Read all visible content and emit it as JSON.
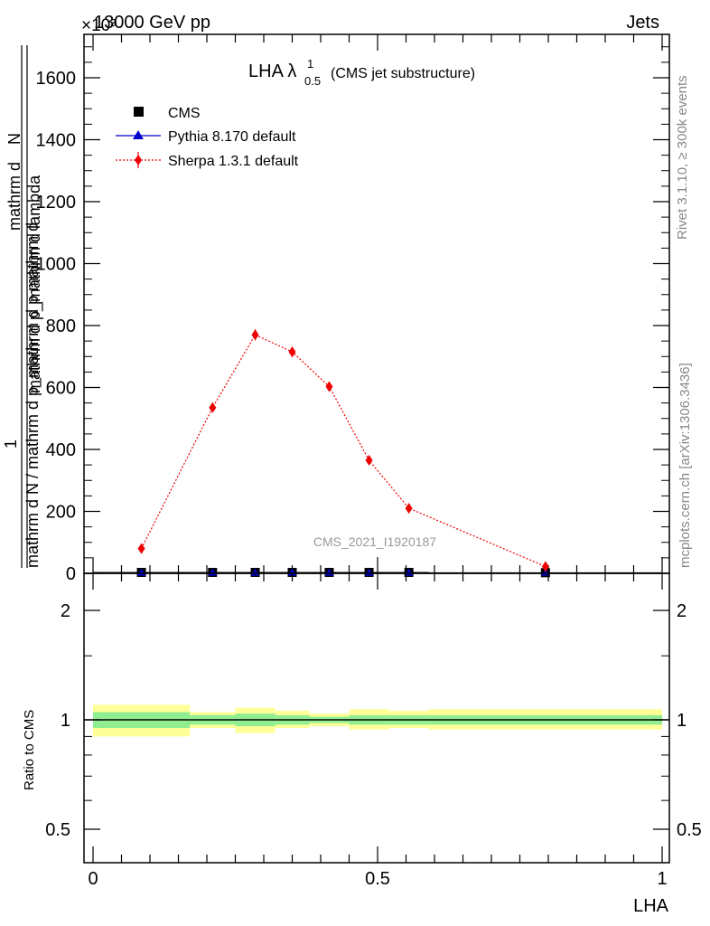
{
  "header": {
    "left_text": "13000 GeV pp",
    "right_text": "Jets",
    "exponent_label": "×10³"
  },
  "side_labels": {
    "rivet": "Rivet 3.1.10, ≥ 300k events",
    "mcplots": "mcplots.cern.ch [arXiv:1306.3436]"
  },
  "main_plot": {
    "title": "LHA λ",
    "title_sup": "1",
    "title_sub": "0.5",
    "title_suffix": "(CMS jet substructure)",
    "watermark": "CMS_2021_I1920187",
    "ylabel_top_a": "mathrm d",
    "ylabel_top_b": "N",
    "ylabel_top_c": "mathrm d p_mathrm d lambda",
    "ylabel_one": "1",
    "ylabel_bottom": "mathrm d N / mathrm d p_mathrm d p mathrm d",
    "yticks": [
      "0",
      "200",
      "400",
      "600",
      "800",
      "1000",
      "1200",
      "1400",
      "1600"
    ]
  },
  "ratio_plot": {
    "ylabel": "Ratio to CMS",
    "yticks": [
      "0.5",
      "1",
      "2"
    ]
  },
  "xaxis": {
    "label": "LHA",
    "ticks": [
      "0",
      "0.5",
      "1"
    ]
  },
  "legend": [
    {
      "name": "CMS",
      "marker": "square",
      "color": "#000000"
    },
    {
      "name": "Pythia 8.170 default",
      "marker": "triangle",
      "color": "#0000cc"
    },
    {
      "name": "Sherpa 1.3.1 default",
      "marker": "diamond",
      "color": "#ee0000"
    }
  ],
  "colors": {
    "sherpa": "#ee0000",
    "pythia": "#0000cc",
    "cms": "#000000",
    "band_inner": "#90ee90",
    "band_outer": "#ffff99"
  },
  "chart_data": {
    "type": "scatter",
    "xlim": [
      0,
      1
    ],
    "ylim": [
      0,
      1750
    ],
    "y_scale_factor": 1000,
    "ratio_ylim": [
      0.4,
      2.5
    ],
    "ratio_scale": "log",
    "grid": false,
    "legend_position": "top-left",
    "series": [
      {
        "name": "CMS",
        "x": [
          0.085,
          0.21,
          0.285,
          0.35,
          0.415,
          0.485,
          0.555,
          0.795
        ],
        "y": [
          3,
          3,
          3,
          3,
          3,
          3,
          3,
          2
        ],
        "xerr": [
          0.085,
          0.04,
          0.035,
          0.03,
          0.035,
          0.035,
          0.035,
          0.205
        ]
      },
      {
        "name": "Pythia 8.170 default",
        "x": [
          0.085,
          0.21,
          0.285,
          0.35,
          0.415,
          0.485,
          0.555,
          0.795
        ],
        "y": [
          1,
          1,
          1,
          1,
          1,
          1,
          1,
          1
        ]
      },
      {
        "name": "Sherpa 1.3.1 default",
        "x": [
          0.085,
          0.21,
          0.285,
          0.35,
          0.415,
          0.485,
          0.555,
          0.795
        ],
        "y": [
          80,
          535,
          770,
          715,
          603,
          365,
          210,
          22
        ],
        "yerr": [
          8,
          15,
          18,
          17,
          15,
          12,
          6,
          6
        ]
      }
    ],
    "ratio_bands": [
      {
        "x0": 0.0,
        "x1": 0.17,
        "inner": [
          0.95,
          1.05
        ],
        "outer": [
          0.9,
          1.1
        ]
      },
      {
        "x0": 0.17,
        "x1": 0.25,
        "inner": [
          0.97,
          1.03
        ],
        "outer": [
          0.95,
          1.05
        ]
      },
      {
        "x0": 0.25,
        "x1": 0.32,
        "inner": [
          0.96,
          1.04
        ],
        "outer": [
          0.92,
          1.08
        ]
      },
      {
        "x0": 0.32,
        "x1": 0.38,
        "inner": [
          0.97,
          1.03
        ],
        "outer": [
          0.95,
          1.06
        ]
      },
      {
        "x0": 0.38,
        "x1": 0.45,
        "inner": [
          0.98,
          1.02
        ],
        "outer": [
          0.96,
          1.04
        ]
      },
      {
        "x0": 0.45,
        "x1": 0.52,
        "inner": [
          0.97,
          1.03
        ],
        "outer": [
          0.94,
          1.07
        ]
      },
      {
        "x0": 0.52,
        "x1": 0.59,
        "inner": [
          0.97,
          1.03
        ],
        "outer": [
          0.95,
          1.06
        ]
      },
      {
        "x0": 0.59,
        "x1": 1.0,
        "inner": [
          0.97,
          1.03
        ],
        "outer": [
          0.94,
          1.07
        ]
      }
    ]
  }
}
